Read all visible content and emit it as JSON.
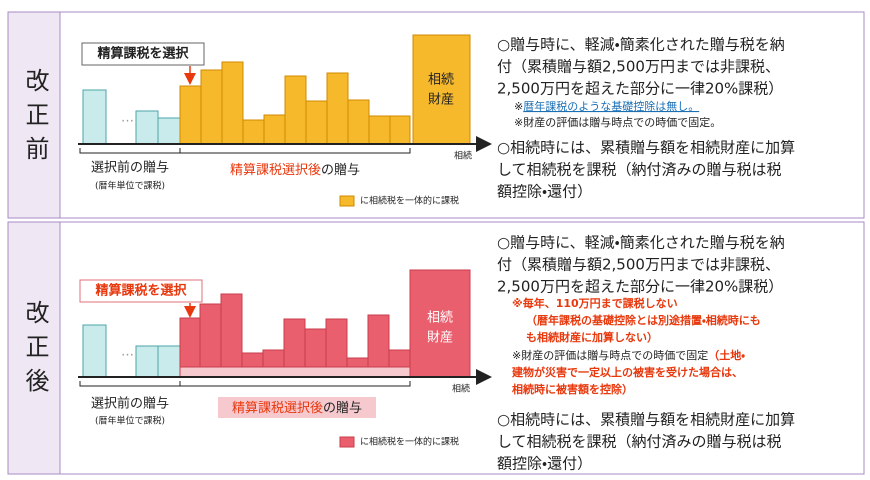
{
  "sections": [
    {
      "label": "改正前",
      "callout": "精算課税を選択",
      "estate": [
        "相続",
        "財産"
      ],
      "axis_label": "相続",
      "before_gift": "選択前の贈与",
      "before_note": "(暦年単位で課税)",
      "after_gift_emph": "精算課税選択後",
      "after_gift_rest": "の贈与",
      "legend": "に相続税を一体的に課税",
      "points": [
        {
          "lines": [
            "○贈与時に、軽減・簡素化された贈与税を納",
            "付（累積贈与額2,500万円までは非課税、",
            "2,500万円を超えた部分に一律20%課税）"
          ]
        },
        {
          "lines": [
            "○相続時には、累積贈与額を相続財産に加算",
            "して相続税を課税（納付済みの贈与税は税",
            "額控除・還付）"
          ]
        }
      ],
      "notes": [
        [
          "※",
          "暦年課税のような基礎控除は無し。"
        ],
        [
          "※財産の評価は贈与時点での時価で固定。"
        ]
      ]
    },
    {
      "label": "改正後",
      "callout": "精算課税を選択",
      "estate": [
        "相続",
        "財産"
      ],
      "axis_label": "相続",
      "before_gift": "選択前の贈与",
      "before_note": "(暦年単位で課税)",
      "after_gift_emph": "精算課税選択後",
      "after_gift_rest": "の贈与",
      "legend": "に相続税を一体的に課税",
      "points": [
        {
          "lines": [
            "○贈与時に、軽減・簡素化された贈与税を納",
            "付（累積贈与額2,500万円までは非課税、",
            "2,500万円を超えた部分に一律20%課税）"
          ]
        },
        {
          "lines": [
            "○相続時には、累積贈与額を相続財産に加算",
            "して相続税を課税（納付済みの贈与税は税",
            "額控除・還付）"
          ]
        }
      ],
      "notes": [
        [
          "※毎年、110万円まで課税しない",
          "（暦年課税の基礎控除とは別途措置・相続時にも",
          "も相続財産に加算しない）"
        ],
        [
          "※財産の評価は贈与時点での時価で固定",
          "（土地・",
          "建物が災害で一定以上の被害を受けた場合は、",
          "相続時に被害額を控除）"
        ]
      ]
    }
  ]
}
